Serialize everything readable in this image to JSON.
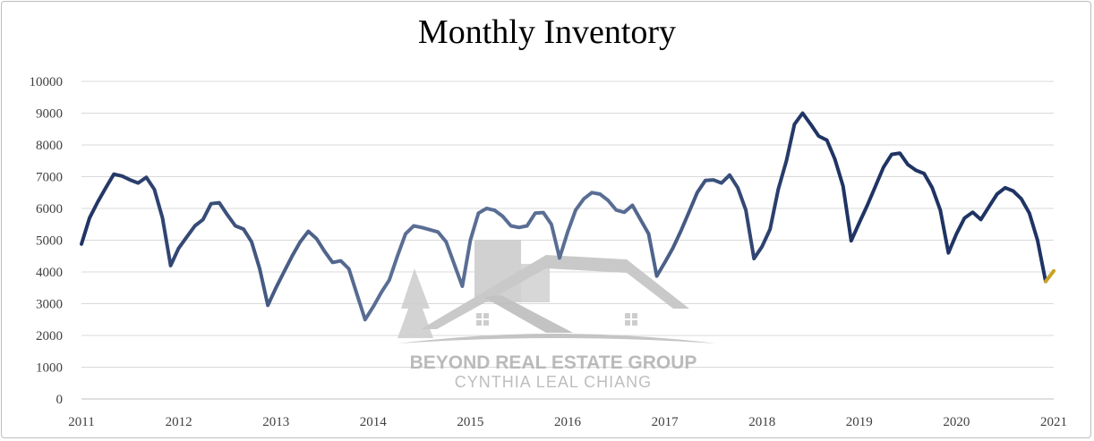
{
  "chart_data": {
    "type": "line",
    "title": "Monthly Inventory",
    "xlabel": "",
    "ylabel": "",
    "ylim": [
      0,
      10000
    ],
    "xlim": [
      2011,
      2021
    ],
    "y_ticks": [
      0,
      1000,
      2000,
      3000,
      4000,
      5000,
      6000,
      7000,
      8000,
      9000,
      10000
    ],
    "x_ticks": [
      2011,
      2012,
      2013,
      2014,
      2015,
      2016,
      2017,
      2018,
      2019,
      2020,
      2021
    ],
    "grid": "horizontal",
    "legend": "none",
    "colors": {
      "series_start": "#1f3464",
      "series_mid": "#5a6e94",
      "last_segment": "#c9a227",
      "grid": "#d9d9d9",
      "axis": "#bfbfbf"
    },
    "series": [
      {
        "x": [
          "2011-01",
          "2011-02",
          "2011-03",
          "2011-04",
          "2011-05",
          "2011-06",
          "2011-07",
          "2011-08",
          "2011-09",
          "2011-10",
          "2011-11",
          "2011-12",
          "2012-01",
          "2012-02",
          "2012-03",
          "2012-04",
          "2012-05",
          "2012-06",
          "2012-07",
          "2012-08",
          "2012-09",
          "2012-10",
          "2012-11",
          "2012-12",
          "2013-01",
          "2013-02",
          "2013-03",
          "2013-04",
          "2013-05",
          "2013-06",
          "2013-07",
          "2013-08",
          "2013-09",
          "2013-10",
          "2013-11",
          "2013-12",
          "2014-01",
          "2014-02",
          "2014-03",
          "2014-04",
          "2014-05",
          "2014-06",
          "2014-07",
          "2014-08",
          "2014-09",
          "2014-10",
          "2014-11",
          "2014-12",
          "2015-01",
          "2015-02",
          "2015-03",
          "2015-04",
          "2015-05",
          "2015-06",
          "2015-07",
          "2015-08",
          "2015-09",
          "2015-10",
          "2015-11",
          "2015-12",
          "2016-01",
          "2016-02",
          "2016-03",
          "2016-04",
          "2016-05",
          "2016-06",
          "2016-07",
          "2016-08",
          "2016-09",
          "2016-10",
          "2016-11",
          "2016-12",
          "2017-01",
          "2017-02",
          "2017-03",
          "2017-04",
          "2017-05",
          "2017-06",
          "2017-07",
          "2017-08",
          "2017-09",
          "2017-10",
          "2017-11",
          "2017-12",
          "2018-01",
          "2018-02",
          "2018-03",
          "2018-04",
          "2018-05",
          "2018-06",
          "2018-07",
          "2018-08",
          "2018-09",
          "2018-10",
          "2018-11",
          "2018-12",
          "2019-01",
          "2019-02",
          "2019-03",
          "2019-04",
          "2019-05",
          "2019-06",
          "2019-07",
          "2019-08",
          "2019-09",
          "2019-10",
          "2019-11",
          "2019-12",
          "2020-01",
          "2020-02",
          "2020-03",
          "2020-04",
          "2020-05",
          "2020-06",
          "2020-07",
          "2020-08",
          "2020-09",
          "2020-10",
          "2020-11",
          "2020-12",
          "2021-01"
        ],
        "values": [
          4880,
          5700,
          6200,
          6650,
          7080,
          7020,
          6900,
          6800,
          6980,
          6600,
          5700,
          4200,
          4750,
          5100,
          5450,
          5650,
          6150,
          6180,
          5800,
          5450,
          5350,
          4950,
          4100,
          2950,
          3500,
          4000,
          4500,
          4950,
          5280,
          5050,
          4650,
          4300,
          4350,
          4100,
          3300,
          2500,
          2900,
          3350,
          3750,
          4500,
          5200,
          5450,
          5400,
          5330,
          5260,
          4950,
          4250,
          3550,
          5000,
          5850,
          6000,
          5940,
          5750,
          5450,
          5400,
          5450,
          5850,
          5870,
          5500,
          4440,
          5250,
          5950,
          6300,
          6500,
          6450,
          6250,
          5950,
          5880,
          6100,
          5650,
          5200,
          3870,
          4300,
          4750,
          5300,
          5900,
          6500,
          6880,
          6900,
          6800,
          7050,
          6650,
          5950,
          4420,
          4800,
          5350,
          6600,
          7500,
          8650,
          9000,
          8650,
          8280,
          8150,
          7550,
          6700,
          4980,
          5550,
          6100,
          6700,
          7300,
          7700,
          7740,
          7380,
          7200,
          7100,
          6650,
          5950,
          4600,
          5200,
          5700,
          5880,
          5650,
          6050,
          6450,
          6650,
          6550,
          6300,
          5850,
          5000,
          3700,
          4030
        ]
      }
    ]
  },
  "watermark": {
    "name": "BEYOND REAL ESTATE GROUP",
    "subtitle": "CYNTHIA LEAL CHIANG"
  }
}
